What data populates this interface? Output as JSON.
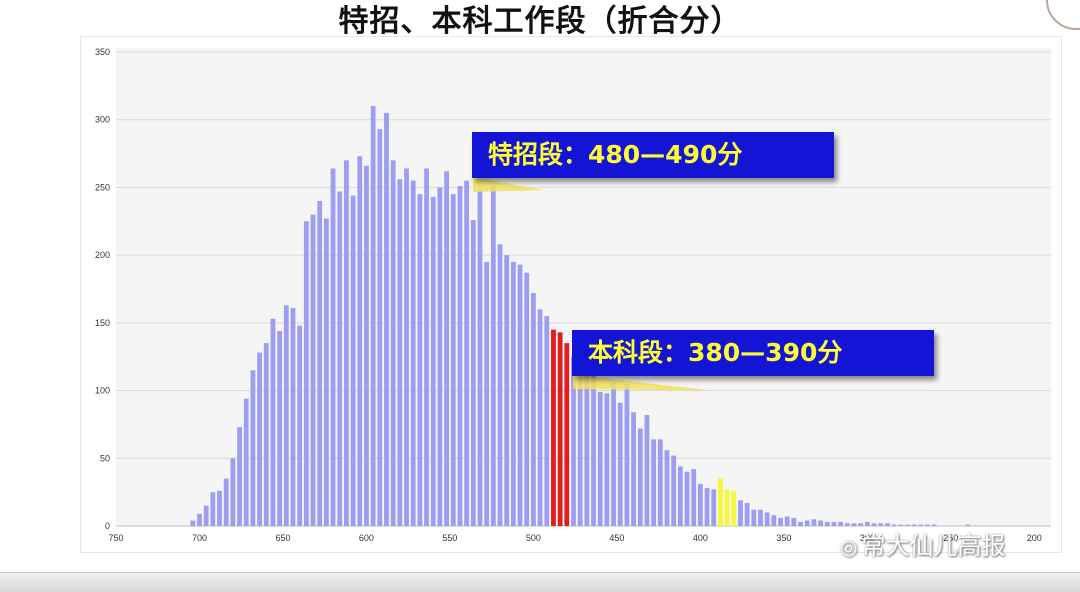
{
  "title": "特招、本科工作段（折合分）",
  "watermark": "常大仙儿高报",
  "callouts": {
    "special": "特招段：480—490分",
    "undergrad": "本科段：380—390分"
  },
  "colors": {
    "bar": "#9d9ef0",
    "special_highlight": "#e01e1e",
    "undergrad_highlight": "#f6f63a",
    "callout_bg": "#1414d6",
    "callout_text": "#ffff33"
  },
  "chart_data": {
    "type": "bar",
    "title": "",
    "xlabel": "",
    "ylabel": "",
    "x_reversed": true,
    "xlim": [
      750,
      190
    ],
    "ylim": [
      0,
      350
    ],
    "grid": true,
    "x_ticks": [
      750,
      700,
      650,
      600,
      550,
      500,
      450,
      400,
      350,
      300,
      250,
      200
    ],
    "y_ticks": [
      0,
      50,
      100,
      150,
      200,
      250,
      300,
      350
    ],
    "highlights": [
      {
        "label": "特招段：480—490分",
        "range": [
          480,
          490
        ],
        "color": "#e01e1e"
      },
      {
        "label": "本科段：380—390分",
        "range": [
          380,
          390
        ],
        "color": "#f6f63a"
      }
    ],
    "bin_width": 4,
    "bins": [
      704,
      700,
      696,
      692,
      688,
      684,
      680,
      676,
      672,
      668,
      664,
      660,
      656,
      652,
      648,
      644,
      640,
      636,
      632,
      628,
      624,
      620,
      616,
      612,
      608,
      604,
      600,
      596,
      592,
      588,
      584,
      580,
      576,
      572,
      568,
      564,
      560,
      556,
      552,
      548,
      544,
      540,
      536,
      532,
      528,
      524,
      520,
      516,
      512,
      508,
      504,
      500,
      496,
      492,
      488,
      484,
      480,
      476,
      472,
      468,
      464,
      460,
      456,
      452,
      448,
      444,
      440,
      436,
      432,
      428,
      424,
      420,
      416,
      412,
      408,
      404,
      400,
      396,
      392,
      388,
      384,
      380,
      376,
      372,
      368,
      364,
      360,
      356,
      352,
      348,
      344,
      340,
      336,
      332,
      328,
      324,
      320,
      316,
      312,
      308,
      304,
      300,
      296,
      292,
      288,
      284,
      280,
      276,
      272,
      268,
      264,
      260,
      256,
      252,
      248,
      244,
      240,
      236,
      232,
      228,
      224,
      220,
      216,
      212,
      208,
      204,
      200
    ],
    "values": [
      4,
      9,
      15,
      25,
      26,
      35,
      50,
      73,
      94,
      115,
      128,
      135,
      153,
      144,
      163,
      161,
      148,
      225,
      230,
      240,
      227,
      264,
      247,
      270,
      244,
      273,
      266,
      310,
      293,
      305,
      270,
      256,
      264,
      255,
      245,
      264,
      243,
      250,
      262,
      245,
      251,
      255,
      226,
      248,
      195,
      251,
      208,
      200,
      195,
      193,
      187,
      172,
      160,
      155,
      145,
      143,
      135,
      125,
      123,
      114,
      118,
      99,
      98,
      106,
      91,
      105,
      84,
      72,
      82,
      64,
      64,
      56,
      52,
      44,
      40,
      42,
      31,
      28,
      27,
      35,
      27,
      26,
      19,
      17,
      12,
      12,
      10,
      8,
      6,
      7,
      6,
      3,
      4,
      5,
      4,
      3,
      3,
      3,
      2,
      2,
      2,
      3,
      2,
      2,
      2,
      1,
      1,
      1,
      1,
      1,
      1,
      1,
      0,
      0,
      0,
      0,
      1,
      0,
      0,
      0,
      0,
      0,
      0,
      0,
      0,
      0,
      0
    ]
  }
}
